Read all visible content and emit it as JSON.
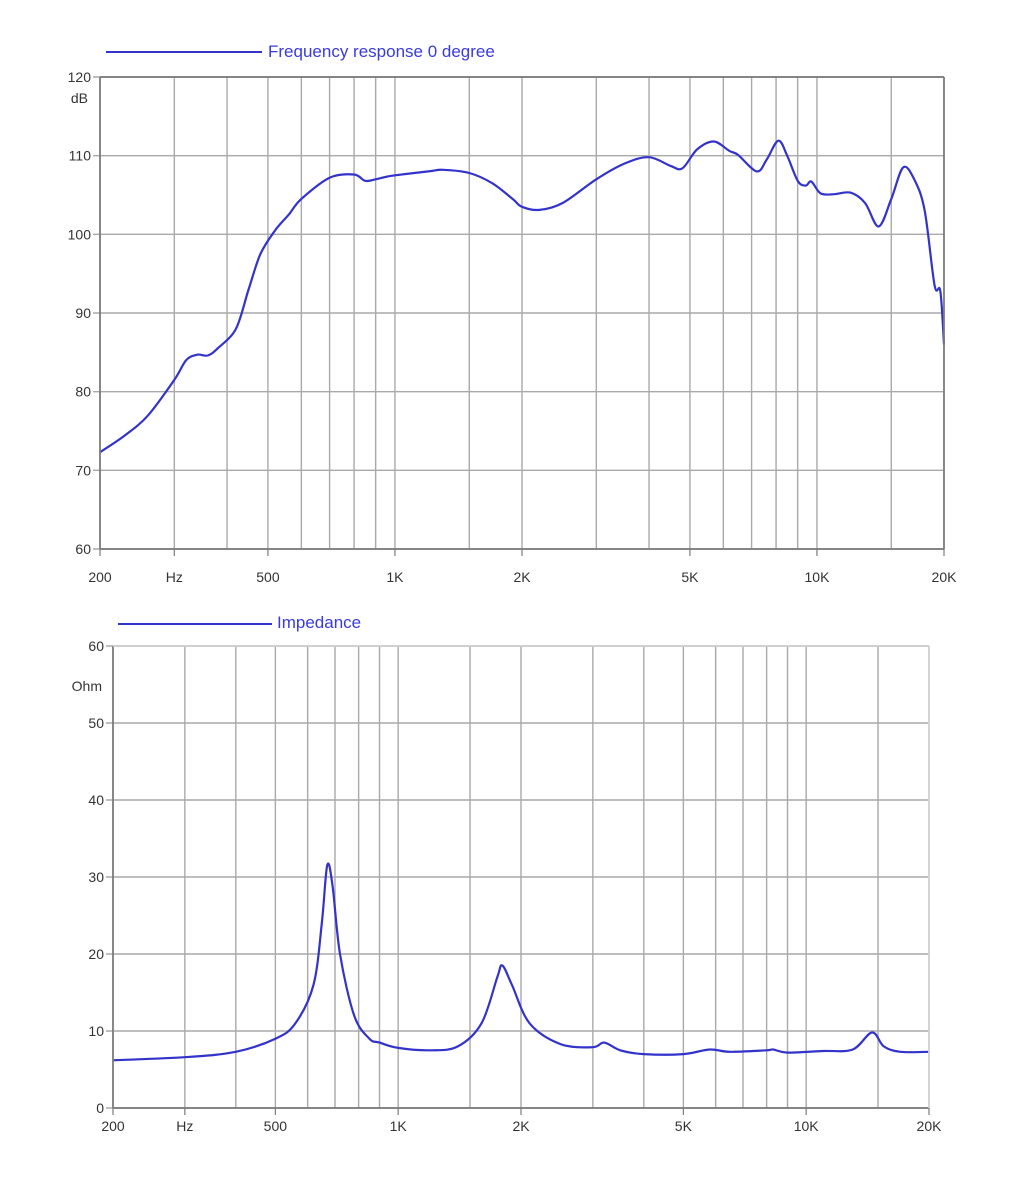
{
  "colors": {
    "series": "#3333cc",
    "legend_text": "#3a3ae0",
    "grid": "#a9a9a9",
    "axis": "#7a7a7a",
    "label": "#333333"
  },
  "chart_data": [
    {
      "type": "line",
      "title": "",
      "legend": [
        "Frequency response 0 degree"
      ],
      "legend_position": "top-left",
      "xlabel": "Hz",
      "ylabel": "dB",
      "xscale": "log",
      "xlim": [
        200,
        20000
      ],
      "ylim": [
        60,
        120
      ],
      "grid": true,
      "x_tick_labels": [
        {
          "value": 200,
          "label": "200"
        },
        {
          "value": 300,
          "label": "Hz"
        },
        {
          "value": 500,
          "label": "500"
        },
        {
          "value": 1000,
          "label": "1K"
        },
        {
          "value": 2000,
          "label": "2K"
        },
        {
          "value": 5000,
          "label": "5K"
        },
        {
          "value": 10000,
          "label": "10K"
        },
        {
          "value": 20000,
          "label": "20K"
        }
      ],
      "y_ticks": [
        60,
        70,
        80,
        90,
        100,
        110,
        120
      ],
      "x_gridlines": [
        300,
        400,
        500,
        600,
        700,
        800,
        900,
        1000,
        1500,
        2000,
        3000,
        4000,
        5000,
        6000,
        7000,
        8000,
        9000,
        10000,
        15000
      ],
      "series": [
        {
          "name": "Frequency response 0 degree",
          "x": [
            200,
            230,
            260,
            300,
            320,
            340,
            360,
            380,
            420,
            450,
            480,
            520,
            560,
            600,
            700,
            800,
            850,
            900,
            950,
            1000,
            1200,
            1300,
            1500,
            1700,
            1900,
            2000,
            2200,
            2500,
            3000,
            3500,
            4000,
            4500,
            4800,
            5200,
            5700,
            6200,
            6500,
            7200,
            7600,
            8100,
            8500,
            9000,
            9400,
            9700,
            10200,
            11000,
            12000,
            13000,
            14000,
            15000,
            16000,
            17000,
            18000,
            19000,
            19600,
            20000
          ],
          "y": [
            72.3,
            74.5,
            77,
            81.5,
            84,
            84.7,
            84.6,
            85.5,
            88,
            93,
            97.5,
            100.5,
            102.5,
            104.5,
            107.2,
            107.6,
            106.8,
            107,
            107.3,
            107.5,
            108,
            108.2,
            107.8,
            106.5,
            104.5,
            103.5,
            103.1,
            104,
            107,
            109,
            109.8,
            108.7,
            108.4,
            110.8,
            111.8,
            110.6,
            110.1,
            108,
            109.5,
            111.9,
            110,
            106.8,
            106.2,
            106.7,
            105.2,
            105.1,
            105.3,
            104,
            101,
            104.5,
            108.5,
            107,
            103,
            93.5,
            92.8,
            86
          ]
        }
      ]
    },
    {
      "type": "line",
      "title": "",
      "legend": [
        "Impedance"
      ],
      "legend_position": "top-left",
      "xlabel": "Hz",
      "ylabel": "Ohm",
      "xscale": "log",
      "xlim": [
        200,
        20000
      ],
      "ylim": [
        0,
        60
      ],
      "grid": true,
      "x_tick_labels": [
        {
          "value": 200,
          "label": "200"
        },
        {
          "value": 300,
          "label": "Hz"
        },
        {
          "value": 500,
          "label": "500"
        },
        {
          "value": 1000,
          "label": "1K"
        },
        {
          "value": 2000,
          "label": "2K"
        },
        {
          "value": 5000,
          "label": "5K"
        },
        {
          "value": 10000,
          "label": "10K"
        },
        {
          "value": 20000,
          "label": "20K"
        }
      ],
      "y_ticks": [
        0,
        10,
        20,
        30,
        40,
        50,
        60
      ],
      "x_gridlines": [
        300,
        400,
        500,
        600,
        700,
        800,
        900,
        1000,
        1500,
        2000,
        3000,
        4000,
        5000,
        6000,
        7000,
        8000,
        9000,
        10000,
        15000
      ],
      "series": [
        {
          "name": "Impedance",
          "x": [
            200,
            300,
            400,
            500,
            560,
            620,
            650,
            670,
            690,
            720,
            780,
            850,
            900,
            1000,
            1200,
            1400,
            1600,
            1750,
            1800,
            1900,
            2100,
            2500,
            3000,
            3200,
            3500,
            4000,
            5000,
            5800,
            6500,
            8000,
            8300,
            9000,
            11000,
            13000,
            14500,
            15500,
            17000,
            20000
          ],
          "y": [
            6.2,
            6.6,
            7.3,
            9,
            11,
            16,
            24,
            31.5,
            29,
            20,
            12,
            9,
            8.5,
            7.8,
            7.5,
            8,
            11,
            17,
            18.5,
            16,
            11,
            8.3,
            7.9,
            8.5,
            7.5,
            7,
            7,
            7.6,
            7.3,
            7.5,
            7.6,
            7.2,
            7.4,
            7.6,
            9.8,
            8,
            7.3,
            7.3
          ]
        }
      ]
    }
  ]
}
